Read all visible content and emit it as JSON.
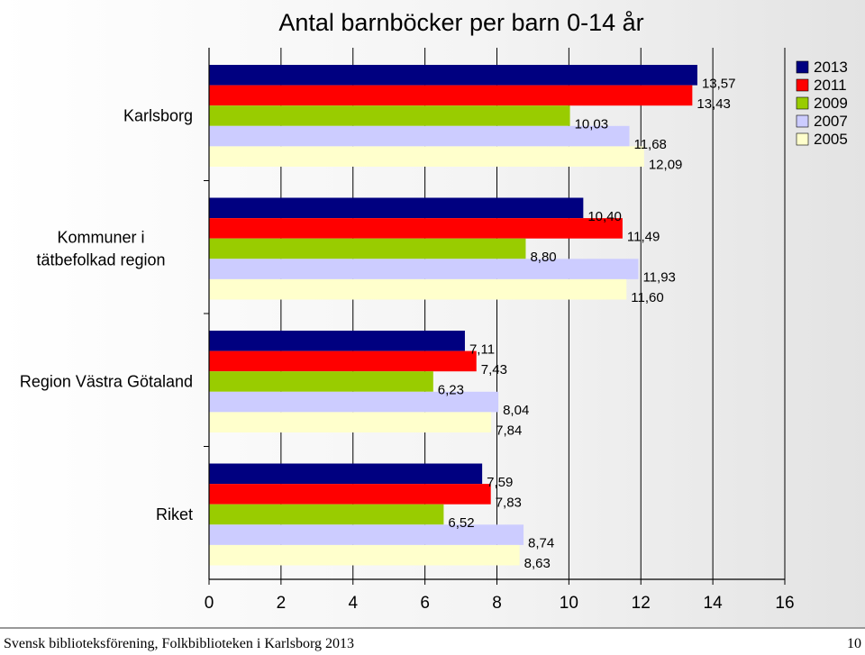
{
  "chart_data": {
    "type": "bar",
    "orientation": "horizontal",
    "title": "Antal barnböcker per barn 0-14 år",
    "categories": [
      "Karlsborg",
      "Kommuner i tätbefolkad region",
      "Region Västra Götaland",
      "Riket"
    ],
    "series": [
      {
        "name": "2013",
        "color": "#000080",
        "values": [
          13.57,
          10.4,
          7.11,
          7.59
        ],
        "labels": [
          "13,57",
          "10,40",
          "7,11",
          "7,59"
        ]
      },
      {
        "name": "2011",
        "color": "#ff0000",
        "values": [
          13.43,
          11.49,
          7.43,
          7.83
        ],
        "labels": [
          "13,43",
          "11,49",
          "7,43",
          "7,83"
        ]
      },
      {
        "name": "2009",
        "color": "#99cc00",
        "values": [
          10.03,
          8.8,
          6.23,
          6.52
        ],
        "labels": [
          "10,03",
          "8,80",
          "6,23",
          "6,52"
        ]
      },
      {
        "name": "2007",
        "color": "#ccccff",
        "values": [
          11.68,
          11.93,
          8.04,
          8.74
        ],
        "labels": [
          "11,68",
          "11,93",
          "8,04",
          "8,74"
        ]
      },
      {
        "name": "2005",
        "color": "#ffffcc",
        "values": [
          12.09,
          11.6,
          7.84,
          8.63
        ],
        "labels": [
          "12,09",
          "11,60",
          "7,84",
          "8,63"
        ]
      }
    ],
    "xlim": [
      0,
      16
    ],
    "xticks": [
      "0",
      "2",
      "4",
      "6",
      "8",
      "10",
      "12",
      "14",
      "16"
    ],
    "grid": "vertical",
    "legend": "top-right"
  },
  "footer": {
    "source": "Svensk biblioteksförening, Folkbiblioteken i Karlsborg 2013",
    "page": "10"
  }
}
